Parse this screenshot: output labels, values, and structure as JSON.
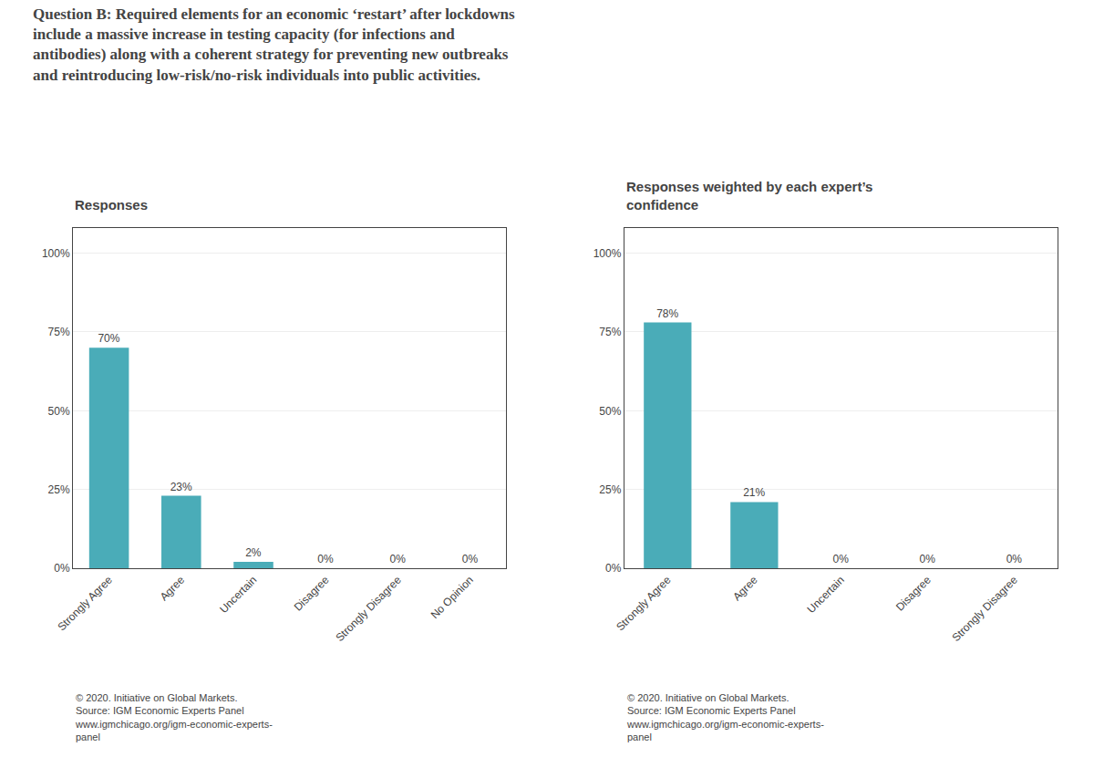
{
  "title": "Question B: Required elements for an economic ‘restart’ after lockdowns\ninclude a massive increase in testing capacity (for infections and\nantibodies) along with a coherent strategy for preventing new outbreaks\nand reintroducing low-risk/no-risk individuals into public activities.",
  "chart_data": [
    {
      "type": "bar",
      "subtitle": "Responses",
      "categories": [
        "Strongly Agree",
        "Agree",
        "Uncertain",
        "Disagree",
        "Strongly Disagree",
        "No Opinion"
      ],
      "values": [
        70,
        23,
        2,
        0,
        0,
        0
      ],
      "value_labels": [
        "70%",
        "23%",
        "2%",
        "0%",
        "0%",
        "0%"
      ],
      "data_labels": true,
      "color": "#4AACB8",
      "ylim": [
        0,
        108
      ],
      "yticks": [
        {
          "value": 0,
          "label": "0%"
        },
        {
          "value": 25,
          "label": "25%"
        },
        {
          "value": 50,
          "label": "50%"
        },
        {
          "value": 75,
          "label": "75%"
        },
        {
          "value": 100,
          "label": "100%"
        }
      ],
      "grid": true,
      "annotations": [
        "© 2020. Initiative on Global Markets.",
        "Source: IGM Economic Experts Panel",
        "www.igmchicago.org/igm-economic-experts-",
        "panel"
      ]
    },
    {
      "type": "bar",
      "subtitle": "Responses weighted by each expert’s\nconfidence",
      "categories": [
        "Strongly Agree",
        "Agree",
        "Uncertain",
        "Disagree",
        "Strongly Disagree"
      ],
      "values": [
        78,
        21,
        0,
        0,
        0
      ],
      "value_labels": [
        "78%",
        "21%",
        "0%",
        "0%",
        "0%"
      ],
      "data_labels": true,
      "color": "#4AACB8",
      "ylim": [
        0,
        108
      ],
      "yticks": [
        {
          "value": 0,
          "label": "0%"
        },
        {
          "value": 25,
          "label": "25%"
        },
        {
          "value": 50,
          "label": "50%"
        },
        {
          "value": 75,
          "label": "75%"
        },
        {
          "value": 100,
          "label": "100%"
        }
      ],
      "grid": true,
      "annotations": [
        "© 2020. Initiative on Global Markets.",
        "Source: IGM Economic Experts Panel",
        "www.igmchicago.org/igm-economic-experts-",
        "panel"
      ]
    }
  ]
}
